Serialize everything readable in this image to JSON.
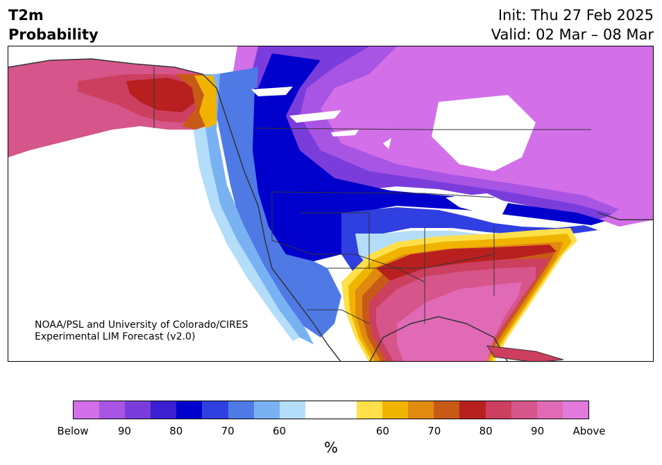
{
  "header": {
    "variable": "T2m",
    "product": "Probability",
    "init": "Init: Thu 27 Feb 2025",
    "valid": "Valid: 02 Mar – 08 Mar"
  },
  "map": {
    "region": "North America",
    "credit_line1": "NOAA/PSL and University of Colorado/CIRES",
    "credit_line2": "Experimental LIM Forecast (v2.0)",
    "below_colors": [
      "#d36fe9",
      "#a855e4",
      "#7a3ddc",
      "#3b1fd1",
      "#0000cc",
      "#2f3fe0",
      "#4f7ae6",
      "#79b2f2",
      "#b3ddf9"
    ],
    "neutral_color": "#ffffff",
    "above_colors": [
      "#ffe04a",
      "#f0b400",
      "#e08a10",
      "#c85a18",
      "#b82020",
      "#cc3f5f",
      "#d6558a",
      "#e06ab5",
      "#e17adb"
    ],
    "pattern": {
      "alaska": "above-normal 70-90",
      "west_canada_and_west_us": "below-normal 70-90",
      "east_canada_and_hudson_bay": "below-normal 90+",
      "south_and_southeast_us": "above-normal 80+",
      "northeast_us": "above-normal 60-80"
    }
  },
  "colorbar": {
    "colors": [
      "#d36fe9",
      "#a855e4",
      "#7a3ddc",
      "#3b1fd1",
      "#0000cc",
      "#2f3fe0",
      "#4f7ae6",
      "#79b2f2",
      "#b3ddf9",
      "#ffffff",
      "#ffffff",
      "#ffe04a",
      "#f0b400",
      "#e08a10",
      "#c85a18",
      "#b82020",
      "#cc3f5f",
      "#d6558a",
      "#e06ab5",
      "#e17adb"
    ],
    "ticks": [
      "Below",
      "90",
      "80",
      "70",
      "60",
      "60",
      "70",
      "80",
      "90",
      "Above"
    ],
    "tick_positions": [
      0,
      2,
      4,
      6,
      8,
      12,
      14,
      16,
      18,
      20
    ],
    "unit": "%"
  }
}
